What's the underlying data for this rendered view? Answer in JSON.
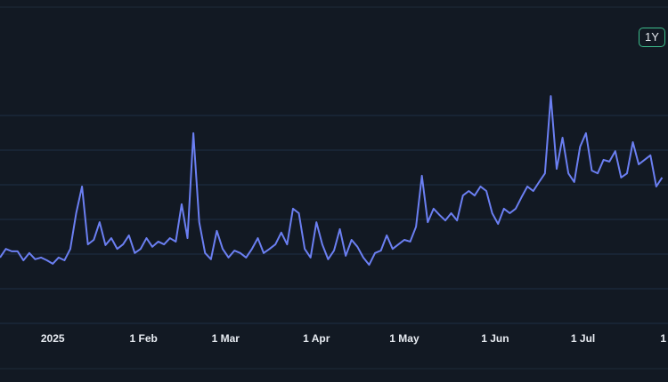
{
  "chart_data": {
    "type": "line",
    "x": [
      -18,
      -16,
      -14,
      -12,
      -10,
      -8,
      -6,
      -4,
      -2,
      0,
      2,
      4,
      6,
      8,
      10,
      12,
      14,
      16,
      18,
      20,
      22,
      24,
      26,
      28,
      30,
      32,
      34,
      36,
      38,
      40,
      42,
      44,
      46,
      48,
      50,
      52,
      54,
      56,
      58,
      60,
      62,
      64,
      66,
      68,
      70,
      72,
      74,
      76,
      78,
      80,
      82,
      84,
      86,
      88,
      90,
      92,
      94,
      96,
      98,
      100,
      102,
      104,
      106,
      108,
      110,
      112,
      114,
      116,
      118,
      120,
      122,
      124,
      126,
      128,
      130,
      132,
      134,
      136,
      138,
      140,
      142,
      144,
      146,
      148,
      150,
      152,
      154,
      156,
      158,
      160,
      162,
      164,
      166,
      168,
      170,
      172,
      174,
      176,
      178,
      180,
      182,
      184,
      186,
      188,
      190,
      192,
      194,
      196,
      198,
      200,
      202,
      204,
      206,
      208
    ],
    "series": [
      {
        "color": "#6b7ff2",
        "values": [
          1.9,
          2.15,
          2.08,
          2.08,
          1.82,
          2.03,
          1.85,
          1.9,
          1.82,
          1.72,
          1.9,
          1.82,
          2.15,
          3.18,
          3.95,
          2.28,
          2.41,
          2.92,
          2.26,
          2.46,
          2.15,
          2.28,
          2.54,
          2.03,
          2.15,
          2.46,
          2.21,
          2.36,
          2.28,
          2.46,
          2.36,
          3.44,
          2.46,
          5.49,
          2.92,
          2.03,
          1.85,
          2.67,
          2.15,
          1.9,
          2.1,
          2.03,
          1.9,
          2.15,
          2.46,
          2.03,
          2.15,
          2.28,
          2.62,
          2.28,
          3.31,
          3.18,
          2.15,
          1.9,
          2.92,
          2.28,
          1.85,
          2.1,
          2.72,
          1.95,
          2.41,
          2.21,
          1.9,
          1.69,
          2.03,
          2.1,
          2.54,
          2.15,
          2.28,
          2.41,
          2.36,
          2.79,
          4.26,
          2.92,
          3.31,
          3.13,
          2.97,
          3.18,
          2.97,
          3.69,
          3.82,
          3.69,
          3.95,
          3.82,
          3.18,
          2.87,
          3.31,
          3.18,
          3.31,
          3.64,
          3.95,
          3.82,
          4.08,
          4.33,
          6.56,
          4.46,
          5.36,
          4.33,
          4.08,
          5.1,
          5.49,
          4.41,
          4.33,
          4.72,
          4.67,
          4.97,
          4.21,
          4.33,
          5.23,
          4.59,
          4.72,
          4.85,
          3.95,
          4.21
        ]
      }
    ],
    "xlim": [
      -18,
      210
    ],
    "xticks": [
      {
        "value": 0,
        "label": "2025"
      },
      {
        "value": 31,
        "label": "1 Feb"
      },
      {
        "value": 59,
        "label": "1 Mar"
      },
      {
        "value": 90,
        "label": "1 Apr"
      },
      {
        "value": 120,
        "label": "1 May"
      },
      {
        "value": 151,
        "label": "1 Jun"
      },
      {
        "value": 181,
        "label": "1 Jul"
      },
      {
        "value": 212,
        "label": "1"
      }
    ],
    "ylim": [
      -1.3,
      9
    ],
    "yticks": [
      0,
      1,
      2,
      3,
      4,
      5,
      6
    ],
    "grid": true
  },
  "range_button": "1Y"
}
